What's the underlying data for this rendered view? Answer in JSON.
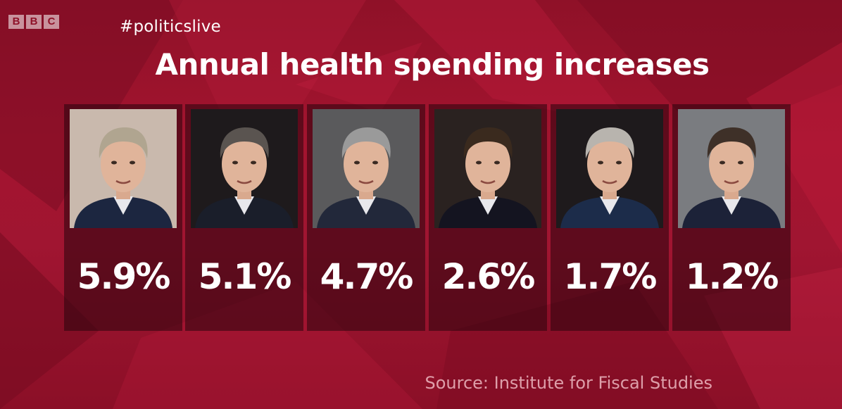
{
  "broadcaster": {
    "logo_letters": [
      "B",
      "B",
      "C"
    ]
  },
  "hashtag": "#politicslive",
  "title": "Annual health spending increases",
  "source": "Source: Institute for Fiscal Studies",
  "colors": {
    "background": "#a3142f",
    "panel": "#3a0812",
    "text": "#ffffff"
  },
  "chart_data": {
    "type": "bar",
    "title": "Annual health spending increases",
    "categories": [
      "",
      "",
      "",
      "",
      "",
      ""
    ],
    "values": [
      5.9,
      5.1,
      4.7,
      2.6,
      1.7,
      1.2
    ],
    "labels": [
      "5.9%",
      "5.1%",
      "4.7%",
      "2.6%",
      "1.7%",
      "1.2%"
    ],
    "unit": "%",
    "annotations": [
      "Source: Institute for Fiscal Studies"
    ]
  },
  "portraits": [
    {
      "icon": "portrait-photo",
      "hair": "#b0a590",
      "suit": "#1c2640",
      "bg": "#c9b9ad"
    },
    {
      "icon": "portrait-photo",
      "hair": "#5a5450",
      "suit": "#1a1e2a",
      "bg": "#1e1a1c"
    },
    {
      "icon": "portrait-photo",
      "hair": "#9a9a9a",
      "suit": "#22283a",
      "bg": "#5a5a5c"
    },
    {
      "icon": "portrait-photo",
      "hair": "#3a2a1e",
      "suit": "#141420",
      "bg": "#2a2220"
    },
    {
      "icon": "portrait-photo",
      "hair": "#b8b4ae",
      "suit": "#1c2c4a",
      "bg": "#1e1a1c"
    },
    {
      "icon": "portrait-photo",
      "hair": "#3e3028",
      "suit": "#1c2238",
      "bg": "#7a7c80"
    }
  ]
}
